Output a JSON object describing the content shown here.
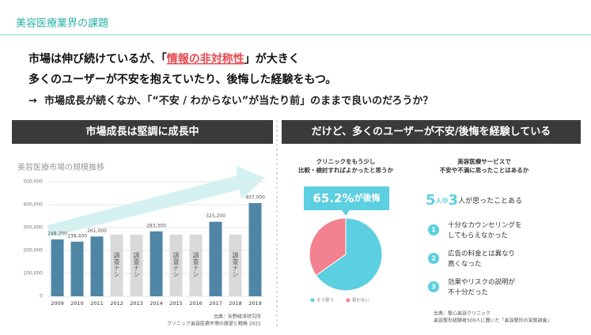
{
  "header": {
    "title": "美容医療業界の課題"
  },
  "lead": {
    "line1_before": "市場は伸び続けているが、「",
    "line1_em": "情報の非対称性",
    "line1_after": "」が大きく",
    "line2": "多くのユーザーが不安を抱えていたり、後悔した経験をもつ。",
    "line3_arrow": "→",
    "line3": "市場成長が続くなか、「“不安 / わからない”が当たり前」のままで良いのだろうか？"
  },
  "left": {
    "heading": "市場成長は堅調に成長中",
    "source_line1": "出典：矢野経済研究所",
    "source_line2": "クリニック美容医療市場の展望と戦略 2021"
  },
  "right": {
    "heading": "だけど、多くのユーザーが不安/後悔を経験している",
    "q2_line1": "美容医療サービスで",
    "q2_line2": "不安や不満に思ったことはあるか",
    "ratio": {
      "n1": "5",
      "t1": "人中",
      "n2": "3",
      "t2": "人が思ったことある"
    },
    "items": [
      {
        "num": "1",
        "line1": "十分なカウンセリングを",
        "line2": "してもらえなかった"
      },
      {
        "num": "2",
        "line1": "広告の料金とは異なり",
        "line2": "高くなった"
      },
      {
        "num": "3",
        "line1": "効果やリスクの説明が",
        "line2": "不十分だった"
      }
    ],
    "source_line1": "出典：聖心美容クリニック",
    "source_line2": "美容整形経験者500人に聞いた「美容整形の実態調査」"
  },
  "chart_data": [
    {
      "type": "bar",
      "title": "美容医療市場の規模推移",
      "categories": [
        "2009",
        "2010",
        "2011",
        "2012",
        "2013",
        "2014",
        "2015",
        "2016",
        "2017",
        "2018",
        "2019"
      ],
      "values": [
        248200,
        238400,
        261000,
        null,
        null,
        283300,
        null,
        null,
        325200,
        null,
        407000
      ],
      "value_labels": [
        "248,200",
        "238,400",
        "261,000",
        null,
        null,
        "283,300",
        null,
        null,
        "325,200",
        null,
        "407,000"
      ],
      "no_data_label": "調査ナシ",
      "color": "#4f86a6",
      "no_data_color": "#d9d9d9",
      "ylim": [
        0,
        500000
      ],
      "yticks": [
        0,
        {
          "value": 100000,
          "label": "100,000"
        },
        {
          "value": 200000,
          "label": "200,000"
        },
        {
          "value": 300000,
          "label": "300,000"
        },
        {
          "value": 400000,
          "label": "400,000"
        },
        {
          "value": 500000,
          "label": "500,000"
        }
      ],
      "grid": true
    },
    {
      "type": "pie",
      "title_line1": "クリニックをもう少し",
      "title_line2": "比較・検討すればよかったと思うか",
      "categories": [
        "そう思う",
        "思わない"
      ],
      "values": [
        65.2,
        34.8
      ],
      "colors": [
        "#5ccfe0",
        "#f2828f"
      ],
      "value_labels": [
        "65.2%",
        null
      ],
      "callout_suffix": "が後悔"
    }
  ]
}
